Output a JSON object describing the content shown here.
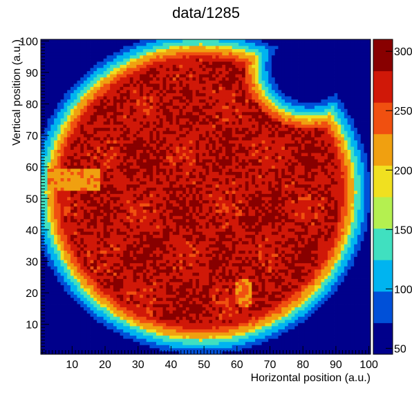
{
  "chart_data": {
    "type": "heatmap",
    "title": "data/1285",
    "xlabel": "Horizontal position (a.u.)",
    "ylabel": "Vertical position (a.u.)",
    "xlim": [
      1,
      100
    ],
    "ylim": [
      1,
      100
    ],
    "x_ticks": [
      10,
      20,
      30,
      40,
      50,
      60,
      70,
      80,
      90,
      100
    ],
    "y_ticks": [
      10,
      20,
      30,
      40,
      50,
      60,
      70,
      80,
      90,
      100
    ],
    "colorbar": {
      "range": [
        45,
        310
      ],
      "ticks": [
        50,
        100,
        150,
        200,
        250,
        300
      ],
      "colormap": [
        "#00008b",
        "#0050d8",
        "#00b4f0",
        "#40e0c0",
        "#b4f050",
        "#f0e020",
        "#f0a010",
        "#f05010",
        "#d01808",
        "#880000"
      ]
    },
    "grid": false,
    "shape": {
      "description_values": "intensity map: circular beam spot centered near (49, 52), radius about 47 units",
      "background_level": 45,
      "plateau_level": 280,
      "hot_level": 300,
      "edge_ring_level": 190,
      "bright_stripe": {
        "x_range": [
          3,
          18
        ],
        "y_range": [
          53,
          59
        ],
        "level": 225
      },
      "notch_top_right": {
        "center": [
          82,
          92
        ],
        "radius": 14
      },
      "bright_blob": {
        "center": [
          62,
          20
        ],
        "level": 230
      }
    }
  }
}
